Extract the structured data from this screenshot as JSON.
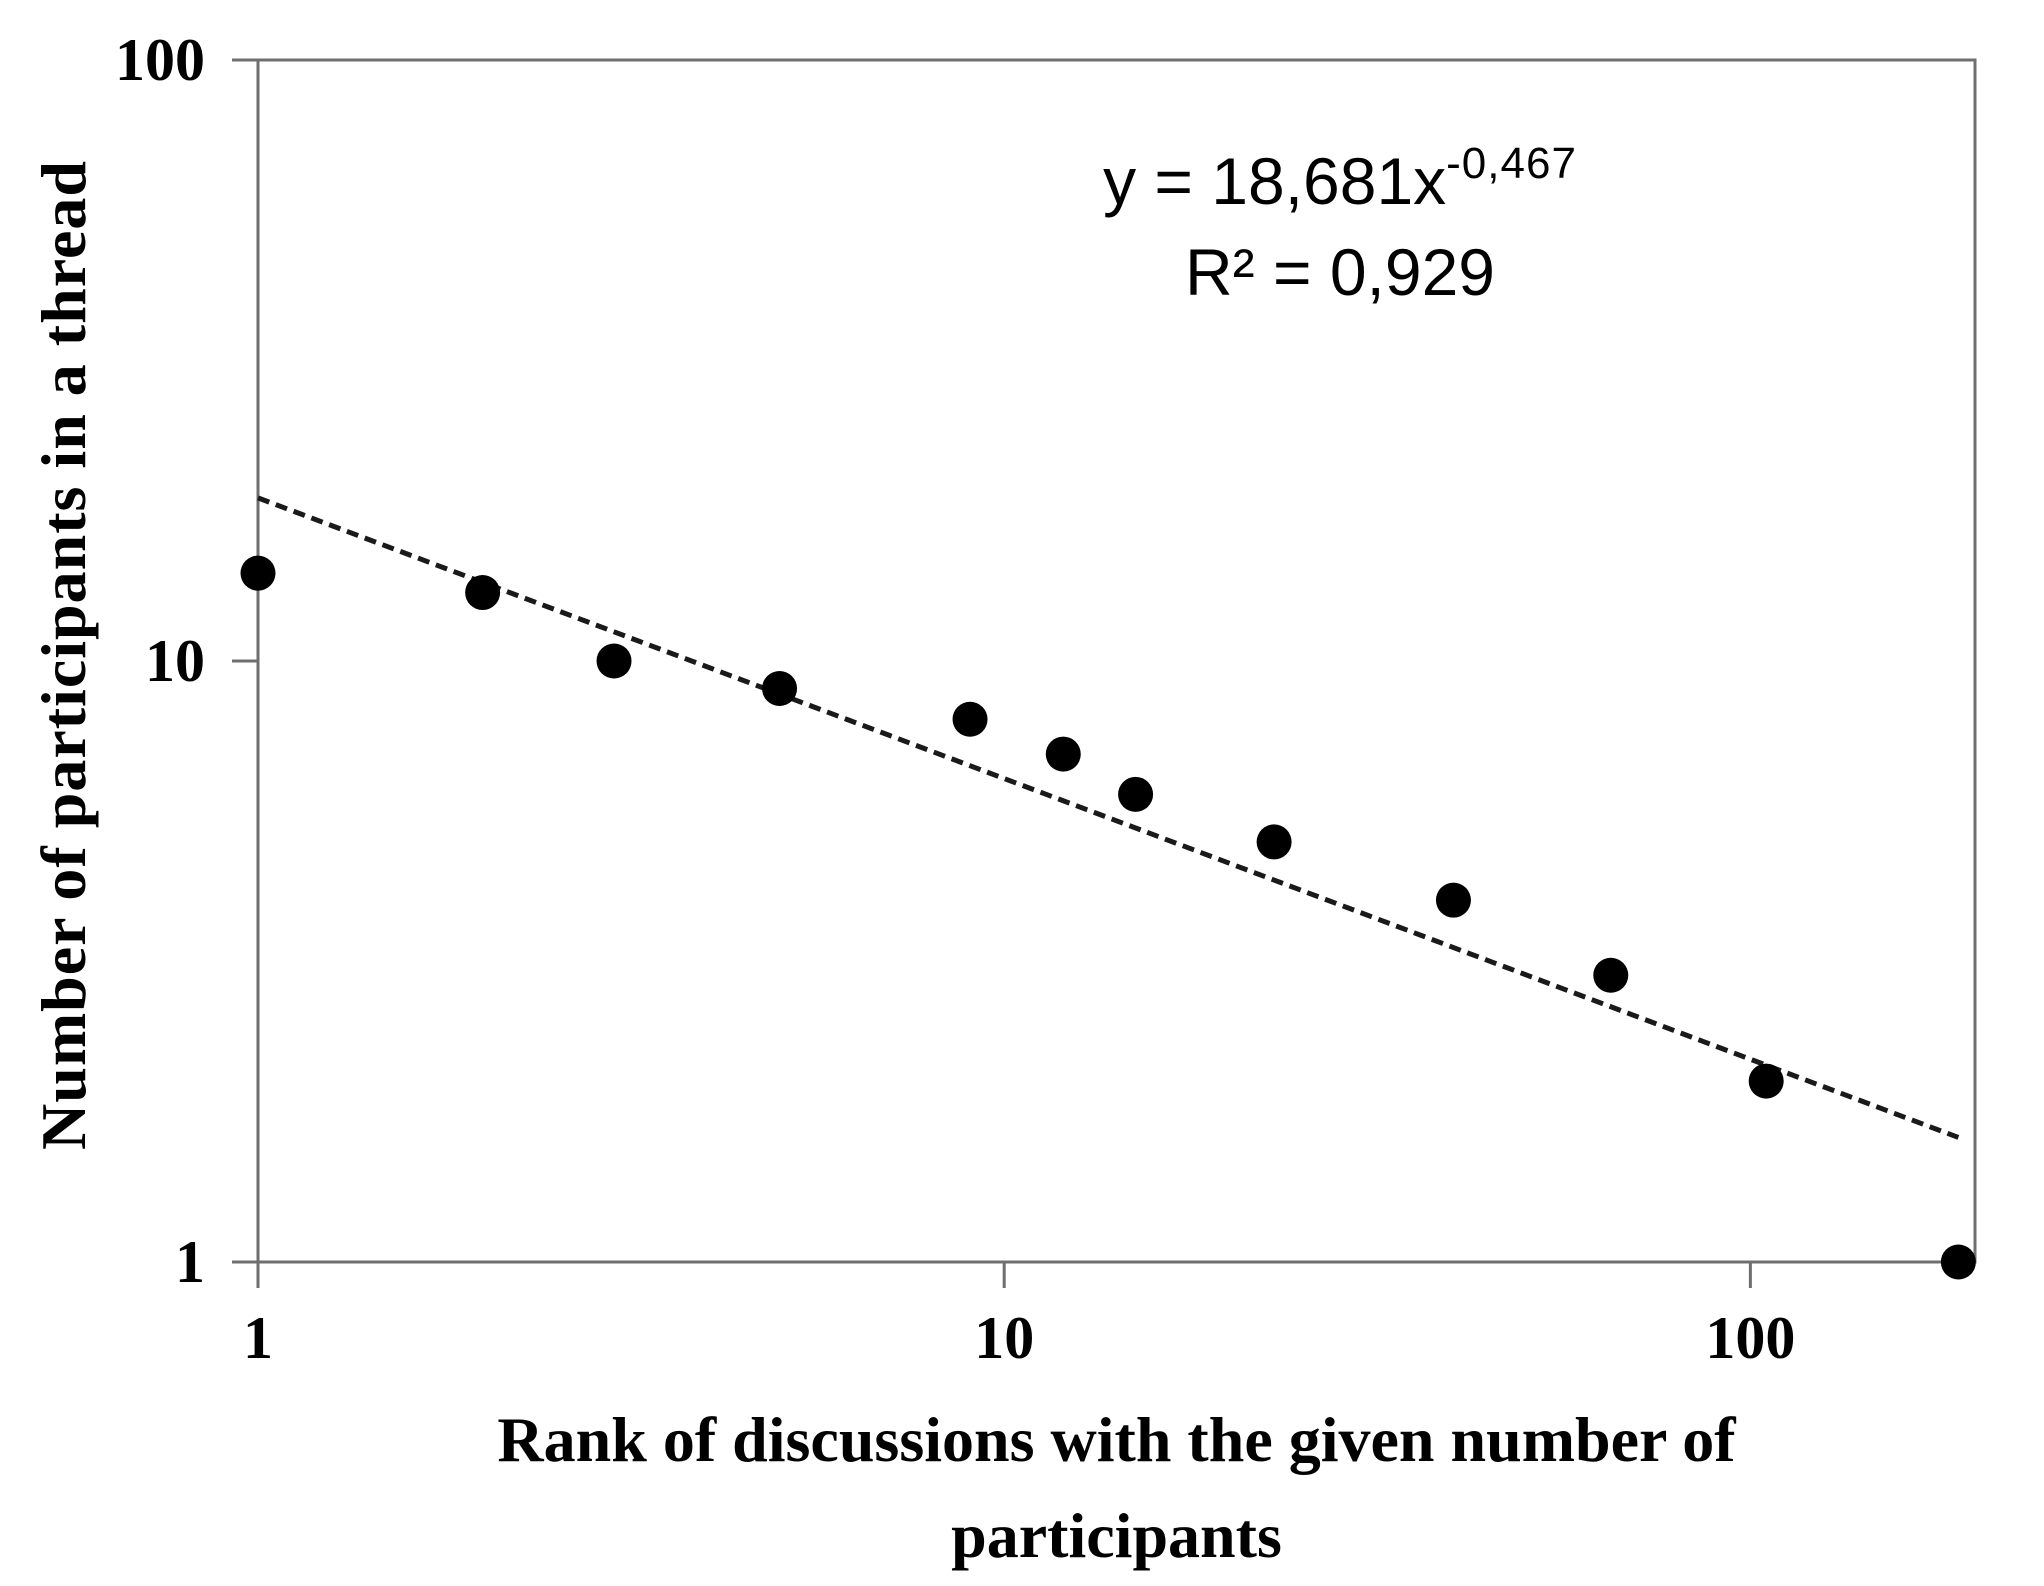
{
  "figure": {
    "equation_base": "y = 18,681x",
    "equation_exponent": "-0,467",
    "r_squared": "R² = 0,929",
    "x_axis_title_line1": "Rank of discussions with the given number of",
    "x_axis_title_line2": "participants",
    "y_axis_title": "Number of participants in a thread"
  },
  "chart_data": {
    "type": "scatter",
    "title": "",
    "xlabel": "Rank of discussions with the given number of participants",
    "ylabel": "Number of participants in a thread",
    "x_scale": "log",
    "y_scale": "log",
    "xlim": [
      1,
      200
    ],
    "ylim": [
      1,
      100
    ],
    "x_ticks": [
      "1",
      "10",
      "100"
    ],
    "y_ticks": [
      "1",
      "10",
      "100"
    ],
    "grid": false,
    "legend": false,
    "points": [
      {
        "rank": 1,
        "participants": 14
      },
      {
        "rank": 2,
        "participants": 13
      },
      {
        "rank": 3,
        "participants": 10
      },
      {
        "rank": 5,
        "participants": 9
      },
      {
        "rank": 9,
        "participants": 8
      },
      {
        "rank": 12,
        "participants": 7
      },
      {
        "rank": 15,
        "participants": 6
      },
      {
        "rank": 23,
        "participants": 5
      },
      {
        "rank": 40,
        "participants": 4
      },
      {
        "rank": 65,
        "participants": 3
      },
      {
        "rank": 105,
        "participants": 2
      },
      {
        "rank": 190,
        "participants": 1
      }
    ],
    "trendline": {
      "type": "power",
      "coefficient": 18.681,
      "exponent": -0.467,
      "r2": 0.929,
      "x_start": 1,
      "x_end": 190,
      "style": "dashed"
    },
    "colors": {
      "marker": "#000000",
      "trendline": "#1a1a1a",
      "frame": "#6f6f6f",
      "text": "#000000"
    }
  }
}
